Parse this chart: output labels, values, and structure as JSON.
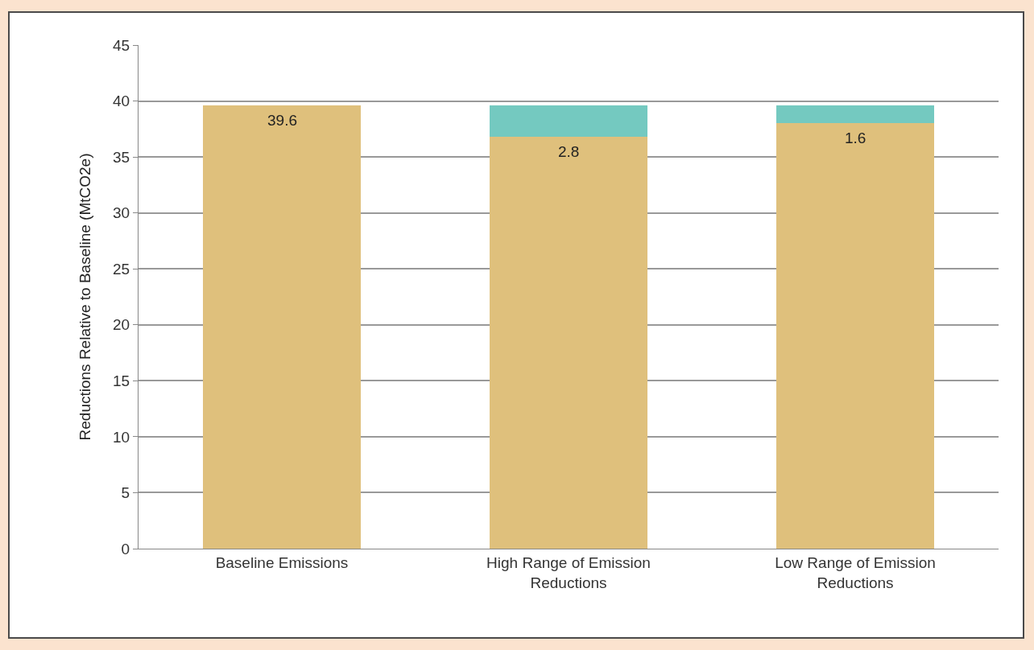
{
  "chart_data": {
    "type": "bar",
    "stacked": true,
    "ylabel": "Reductions Relative to Baseline (MtCO2e)",
    "categories": [
      "Baseline Emissions",
      "High Range of Emission Reductions",
      "Low Range of Emission Reductions"
    ],
    "series": [
      {
        "color": "#dfc07c",
        "values": [
          39.6,
          36.8,
          38.0
        ],
        "value_labels": [
          "39.6",
          null,
          null
        ]
      },
      {
        "color": "#74c9c0",
        "values": [
          0,
          2.8,
          1.6
        ],
        "value_labels": [
          null,
          "2.8",
          "1.6"
        ]
      }
    ],
    "ylim": [
      0,
      45
    ],
    "yticks": [
      0,
      5,
      10,
      15,
      20,
      25,
      30,
      35,
      40,
      45
    ],
    "grid": "y"
  }
}
